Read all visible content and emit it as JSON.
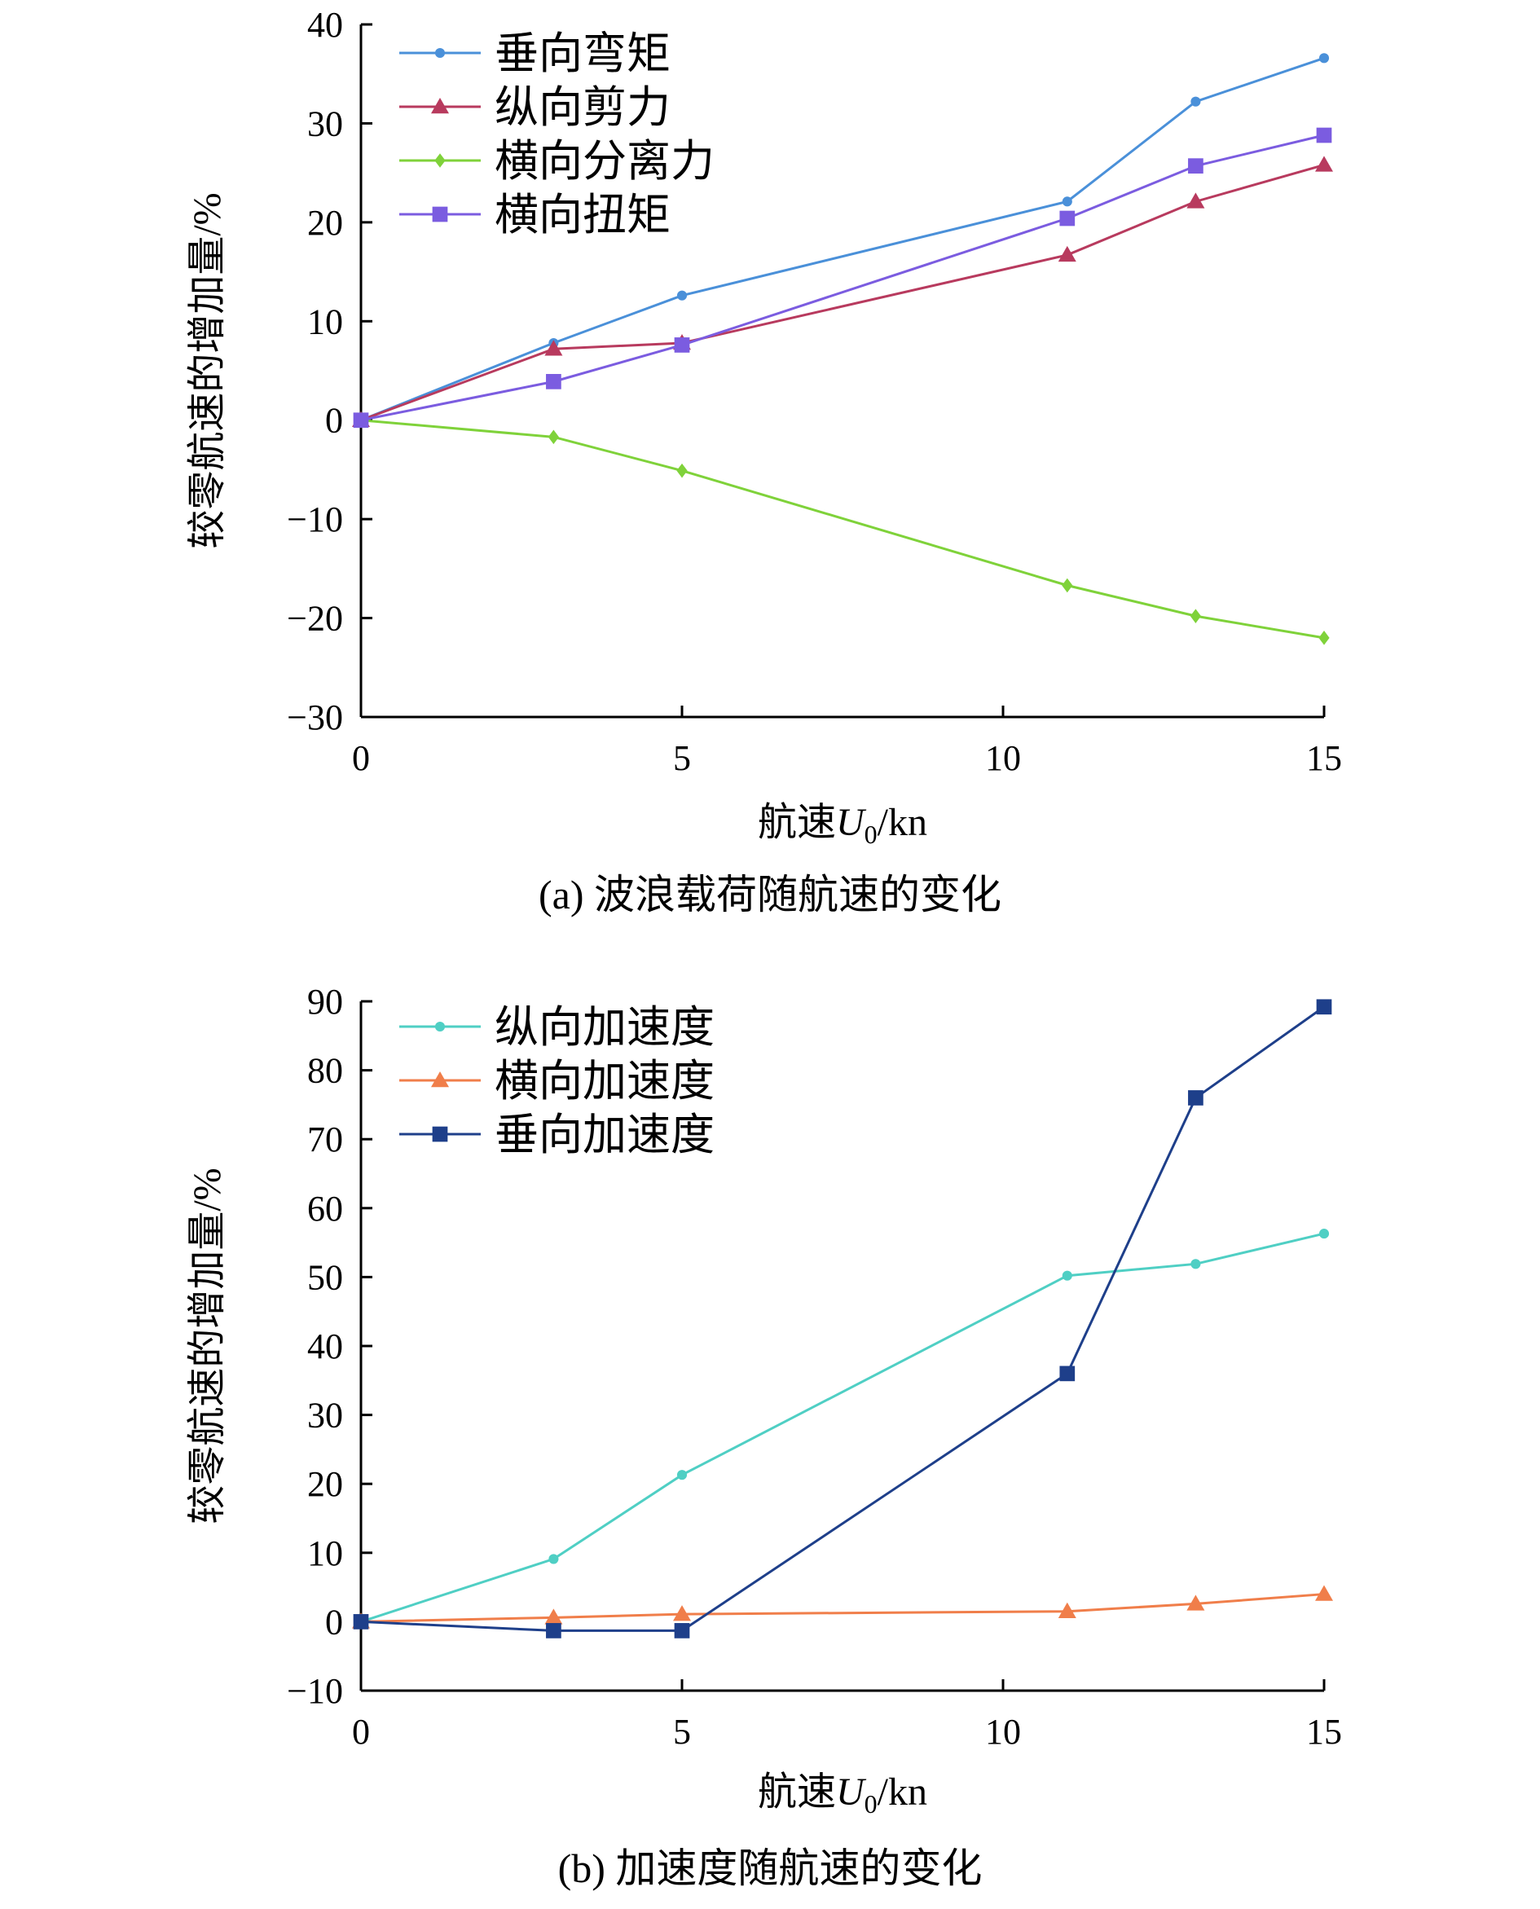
{
  "chart_data": [
    {
      "type": "line",
      "x": [
        0,
        3,
        5,
        11,
        13,
        15
      ],
      "xlim": [
        0,
        15
      ],
      "ylim": [
        -30,
        40
      ],
      "xticks": [
        0,
        5,
        10,
        15
      ],
      "yticks": [
        -30,
        -20,
        -10,
        0,
        10,
        20,
        30,
        40
      ],
      "tick_labels_x": [
        "0",
        "5",
        "10",
        "15"
      ],
      "tick_labels_y": [
        "−30",
        "−20",
        "−10",
        "0",
        "10",
        "20",
        "30",
        "40"
      ],
      "ylabel": "较零航速的增加量/%",
      "xlabel": {
        "prefix": "航速",
        "var": "U",
        "sub": "0",
        "suffix": "/kn"
      },
      "caption": "(a) 波浪载荷随航速的变化",
      "legend_position": "top-left",
      "series": [
        {
          "name": "垂向弯矩",
          "color": "#4a90d9",
          "marker": "circle",
          "values": [
            0,
            7.8,
            12.6,
            22.1,
            32.2,
            36.6
          ]
        },
        {
          "name": "纵向剪力",
          "color": "#b83a5e",
          "marker": "triangle",
          "values": [
            0,
            7.2,
            7.8,
            16.7,
            22.1,
            25.8
          ]
        },
        {
          "name": "横向分离力",
          "color": "#7fd23a",
          "marker": "diamond",
          "values": [
            0,
            -1.7,
            -5.1,
            -16.7,
            -19.8,
            -22.0
          ]
        },
        {
          "name": "横向扭矩",
          "color": "#7b5ce0",
          "marker": "square",
          "values": [
            0,
            3.9,
            7.6,
            20.4,
            25.7,
            28.8
          ]
        }
      ]
    },
    {
      "type": "line",
      "x": [
        0,
        3,
        5,
        11,
        13,
        15
      ],
      "xlim": [
        0,
        15
      ],
      "ylim": [
        -10,
        90
      ],
      "xticks": [
        0,
        5,
        10,
        15
      ],
      "yticks": [
        -10,
        0,
        10,
        20,
        30,
        40,
        50,
        60,
        70,
        80,
        90
      ],
      "tick_labels_x": [
        "0",
        "5",
        "10",
        "15"
      ],
      "tick_labels_y": [
        "−10",
        "0",
        "10",
        "20",
        "30",
        "40",
        "50",
        "60",
        "70",
        "80",
        "90"
      ],
      "ylabel": "较零航速的增加量/%",
      "xlabel": {
        "prefix": "航速",
        "var": "U",
        "sub": "0",
        "suffix": "/kn"
      },
      "caption": "(b) 加速度随航速的变化",
      "legend_position": "top-left",
      "series": [
        {
          "name": "纵向加速度",
          "color": "#4fcfc4",
          "marker": "circle",
          "values": [
            0,
            9.1,
            21.3,
            50.2,
            51.9,
            56.3
          ]
        },
        {
          "name": "横向加速度",
          "color": "#f07e4a",
          "marker": "triangle",
          "values": [
            0,
            0.6,
            1.1,
            1.5,
            2.6,
            4.0
          ]
        },
        {
          "name": "垂向加速度",
          "color": "#1e3f8a",
          "marker": "square",
          "values": [
            0,
            -1.3,
            -1.3,
            36.0,
            76.0,
            89.2
          ]
        }
      ]
    }
  ]
}
